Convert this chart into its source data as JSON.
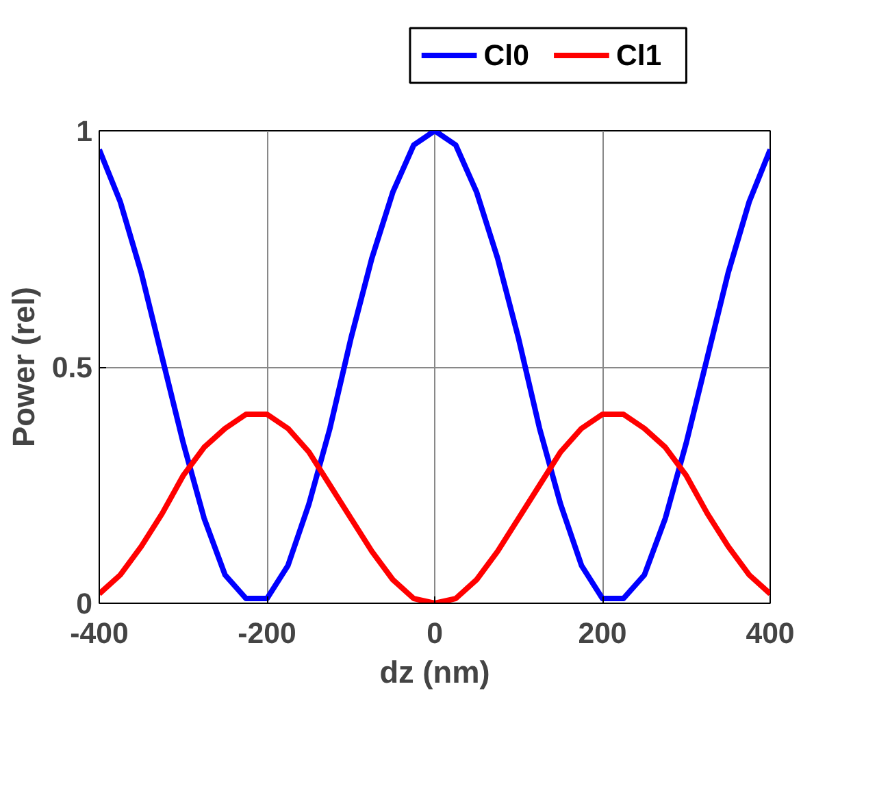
{
  "chart_data": {
    "type": "line",
    "xlabel": "dz (nm)",
    "ylabel": "Power (rel)",
    "x": [
      -400,
      -375,
      -350,
      -325,
      -300,
      -275,
      -250,
      -225,
      -200,
      -175,
      -150,
      -125,
      -100,
      -75,
      -50,
      -25,
      0,
      25,
      50,
      75,
      100,
      125,
      150,
      175,
      200,
      225,
      250,
      275,
      300,
      325,
      350,
      375,
      400
    ],
    "series": [
      {
        "name": "Cl0",
        "color": "#0000ff",
        "values": [
          0.96,
          0.85,
          0.7,
          0.52,
          0.34,
          0.18,
          0.06,
          0.01,
          0.01,
          0.08,
          0.21,
          0.37,
          0.56,
          0.73,
          0.87,
          0.97,
          1.0,
          0.97,
          0.87,
          0.73,
          0.56,
          0.37,
          0.21,
          0.08,
          0.01,
          0.01,
          0.06,
          0.18,
          0.34,
          0.52,
          0.7,
          0.85,
          0.96
        ]
      },
      {
        "name": "Cl1",
        "color": "#ff0000",
        "values": [
          0.02,
          0.06,
          0.12,
          0.19,
          0.27,
          0.33,
          0.37,
          0.4,
          0.4,
          0.37,
          0.32,
          0.25,
          0.18,
          0.11,
          0.05,
          0.01,
          0.0,
          0.01,
          0.05,
          0.11,
          0.18,
          0.25,
          0.32,
          0.37,
          0.4,
          0.4,
          0.37,
          0.33,
          0.27,
          0.19,
          0.12,
          0.06,
          0.02
        ]
      }
    ],
    "xlim": [
      -400,
      400
    ],
    "ylim": [
      0,
      1
    ],
    "xticks": [
      -400,
      -200,
      0,
      200,
      400
    ],
    "yticks": [
      0,
      0.5,
      1
    ],
    "grid": true,
    "legend": "top",
    "marker": "none",
    "line_style": "solid"
  }
}
